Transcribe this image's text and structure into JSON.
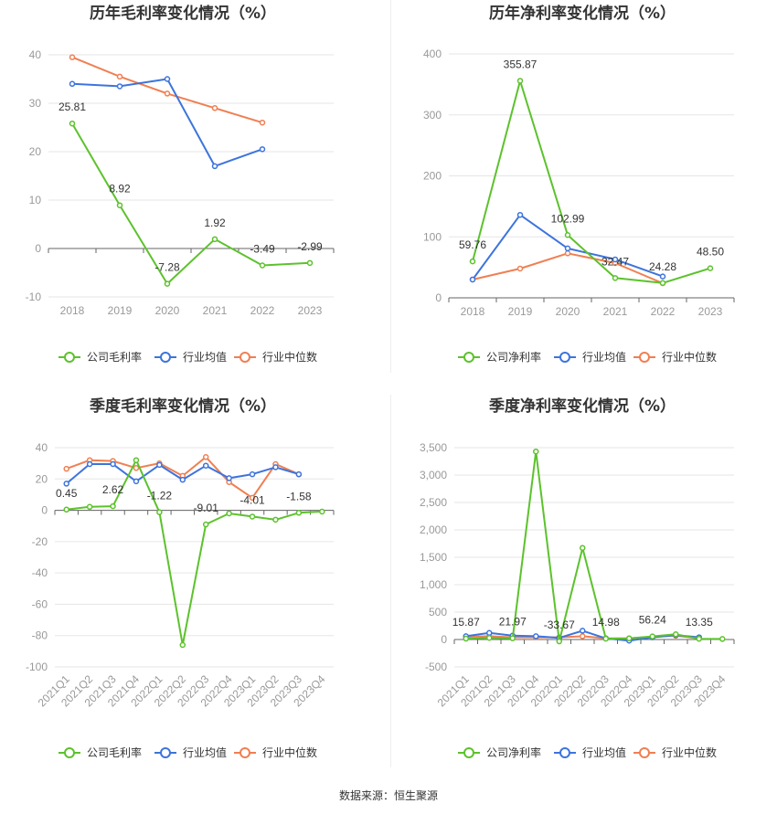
{
  "colors": {
    "company": "#5cc22c",
    "industry_avg": "#3d74dc",
    "industry_median": "#f07f52"
  },
  "source": "数据来源：恒生聚源",
  "chart_data": [
    {
      "id": "annual-gross",
      "type": "line",
      "title": "历年毛利率变化情况（%）",
      "categories": [
        "2018",
        "2019",
        "2020",
        "2021",
        "2022",
        "2023"
      ],
      "ylim": [
        -10,
        40
      ],
      "yticks": [
        -10,
        0,
        10,
        20,
        30,
        40
      ],
      "series": [
        {
          "name": "公司毛利率",
          "color_key": "company",
          "values": [
            25.81,
            8.92,
            -7.28,
            1.92,
            -3.49,
            -2.99
          ]
        },
        {
          "name": "行业均值",
          "color_key": "industry_avg",
          "values": [
            34.0,
            33.5,
            35.0,
            17.0,
            20.5,
            null
          ]
        },
        {
          "name": "行业中位数",
          "color_key": "industry_median",
          "values": [
            39.5,
            35.5,
            32.0,
            29.0,
            26.0,
            null
          ]
        }
      ],
      "data_labels": [
        "25.81",
        "8.92",
        "-7.28",
        "1.92",
        "-3.49",
        "-2.99"
      ],
      "legend": [
        "公司毛利率",
        "行业均值",
        "行业中位数"
      ]
    },
    {
      "id": "annual-net",
      "type": "line",
      "title": "历年净利率变化情况（%）",
      "categories": [
        "2018",
        "2019",
        "2020",
        "2021",
        "2022",
        "2023"
      ],
      "ylim": [
        0,
        400
      ],
      "yticks": [
        0,
        100,
        200,
        300,
        400
      ],
      "series": [
        {
          "name": "公司净利率",
          "color_key": "company",
          "values": [
            59.76,
            355.87,
            102.99,
            32.47,
            24.28,
            48.5
          ]
        },
        {
          "name": "行业均值",
          "color_key": "industry_avg",
          "values": [
            30,
            136,
            81,
            63,
            35,
            null
          ]
        },
        {
          "name": "行业中位数",
          "color_key": "industry_median",
          "values": [
            30,
            48,
            73,
            57,
            24,
            null
          ]
        }
      ],
      "data_labels": [
        "59.76",
        "355.87",
        "102.99",
        "32.47",
        "24.28",
        "48.50"
      ],
      "legend": [
        "公司净利率",
        "行业均值",
        "行业中位数"
      ]
    },
    {
      "id": "quarterly-gross",
      "type": "line",
      "title": "季度毛利率变化情况（%）",
      "categories": [
        "2021Q1",
        "2021Q2",
        "2021Q3",
        "2021Q4",
        "2022Q1",
        "2022Q2",
        "2022Q3",
        "2022Q4",
        "2023Q1",
        "2023Q2",
        "2023Q3",
        "2023Q4"
      ],
      "ylim": [
        -100,
        40
      ],
      "yticks": [
        -100,
        -80,
        -60,
        -40,
        -20,
        0,
        20,
        40
      ],
      "series": [
        {
          "name": "公司毛利率",
          "color_key": "company",
          "values": [
            0.45,
            2.2,
            2.62,
            32.0,
            -1.22,
            -86.0,
            -9.01,
            -2.0,
            -4.01,
            -6.0,
            -1.58,
            -0.8
          ]
        },
        {
          "name": "行业均值",
          "color_key": "industry_avg",
          "values": [
            17.0,
            29.5,
            29.5,
            18.5,
            29.0,
            19.5,
            28.5,
            20.5,
            23.0,
            27.5,
            23.0,
            null
          ]
        },
        {
          "name": "行业中位数",
          "color_key": "industry_median",
          "values": [
            26.5,
            32.0,
            31.5,
            27.0,
            30.0,
            22.0,
            34.0,
            18.0,
            8.0,
            29.5,
            23.0,
            null
          ]
        }
      ],
      "data_labels": [
        "0.45",
        "",
        "2.62",
        "",
        "-1.22",
        "",
        "-9.01",
        "",
        "-4.01",
        "",
        "-1.58",
        ""
      ],
      "legend": [
        "公司毛利率",
        "行业均值",
        "行业中位数"
      ]
    },
    {
      "id": "quarterly-net",
      "type": "line",
      "title": "季度净利率变化情况（%）",
      "categories": [
        "2021Q1",
        "2021Q2",
        "2021Q3",
        "2021Q4",
        "2022Q1",
        "2022Q2",
        "2022Q3",
        "2022Q4",
        "2023Q1",
        "2023Q2",
        "2023Q3",
        "2023Q4"
      ],
      "ylim": [
        -500,
        3500
      ],
      "yticks": [
        -500,
        0,
        500,
        1000,
        1500,
        2000,
        2500,
        3000,
        3500
      ],
      "series": [
        {
          "name": "公司净利率",
          "color_key": "company",
          "values": [
            15.87,
            30,
            21.97,
            3430,
            -33.67,
            1670,
            14.98,
            20,
            56.24,
            95,
            13.35,
            10
          ]
        },
        {
          "name": "行业均值",
          "color_key": "industry_avg",
          "values": [
            60,
            120,
            70,
            60,
            30,
            160,
            20,
            -20,
            40,
            80,
            40,
            null
          ]
        },
        {
          "name": "行业中位数",
          "color_key": "industry_median",
          "values": [
            50,
            60,
            40,
            40,
            40,
            60,
            20,
            20,
            50,
            70,
            20,
            null
          ]
        }
      ],
      "data_labels": [
        "15.87",
        "",
        "21.97",
        "",
        "-33.67",
        "",
        "14.98",
        "",
        "56.24",
        "",
        "13.35",
        ""
      ],
      "ytick_labels": [
        "-500",
        "0",
        "500",
        "1,000",
        "1,500",
        "2,000",
        "2,500",
        "3,000",
        "3,500"
      ],
      "legend": [
        "公司净利率",
        "行业均值",
        "行业中位数"
      ]
    }
  ]
}
